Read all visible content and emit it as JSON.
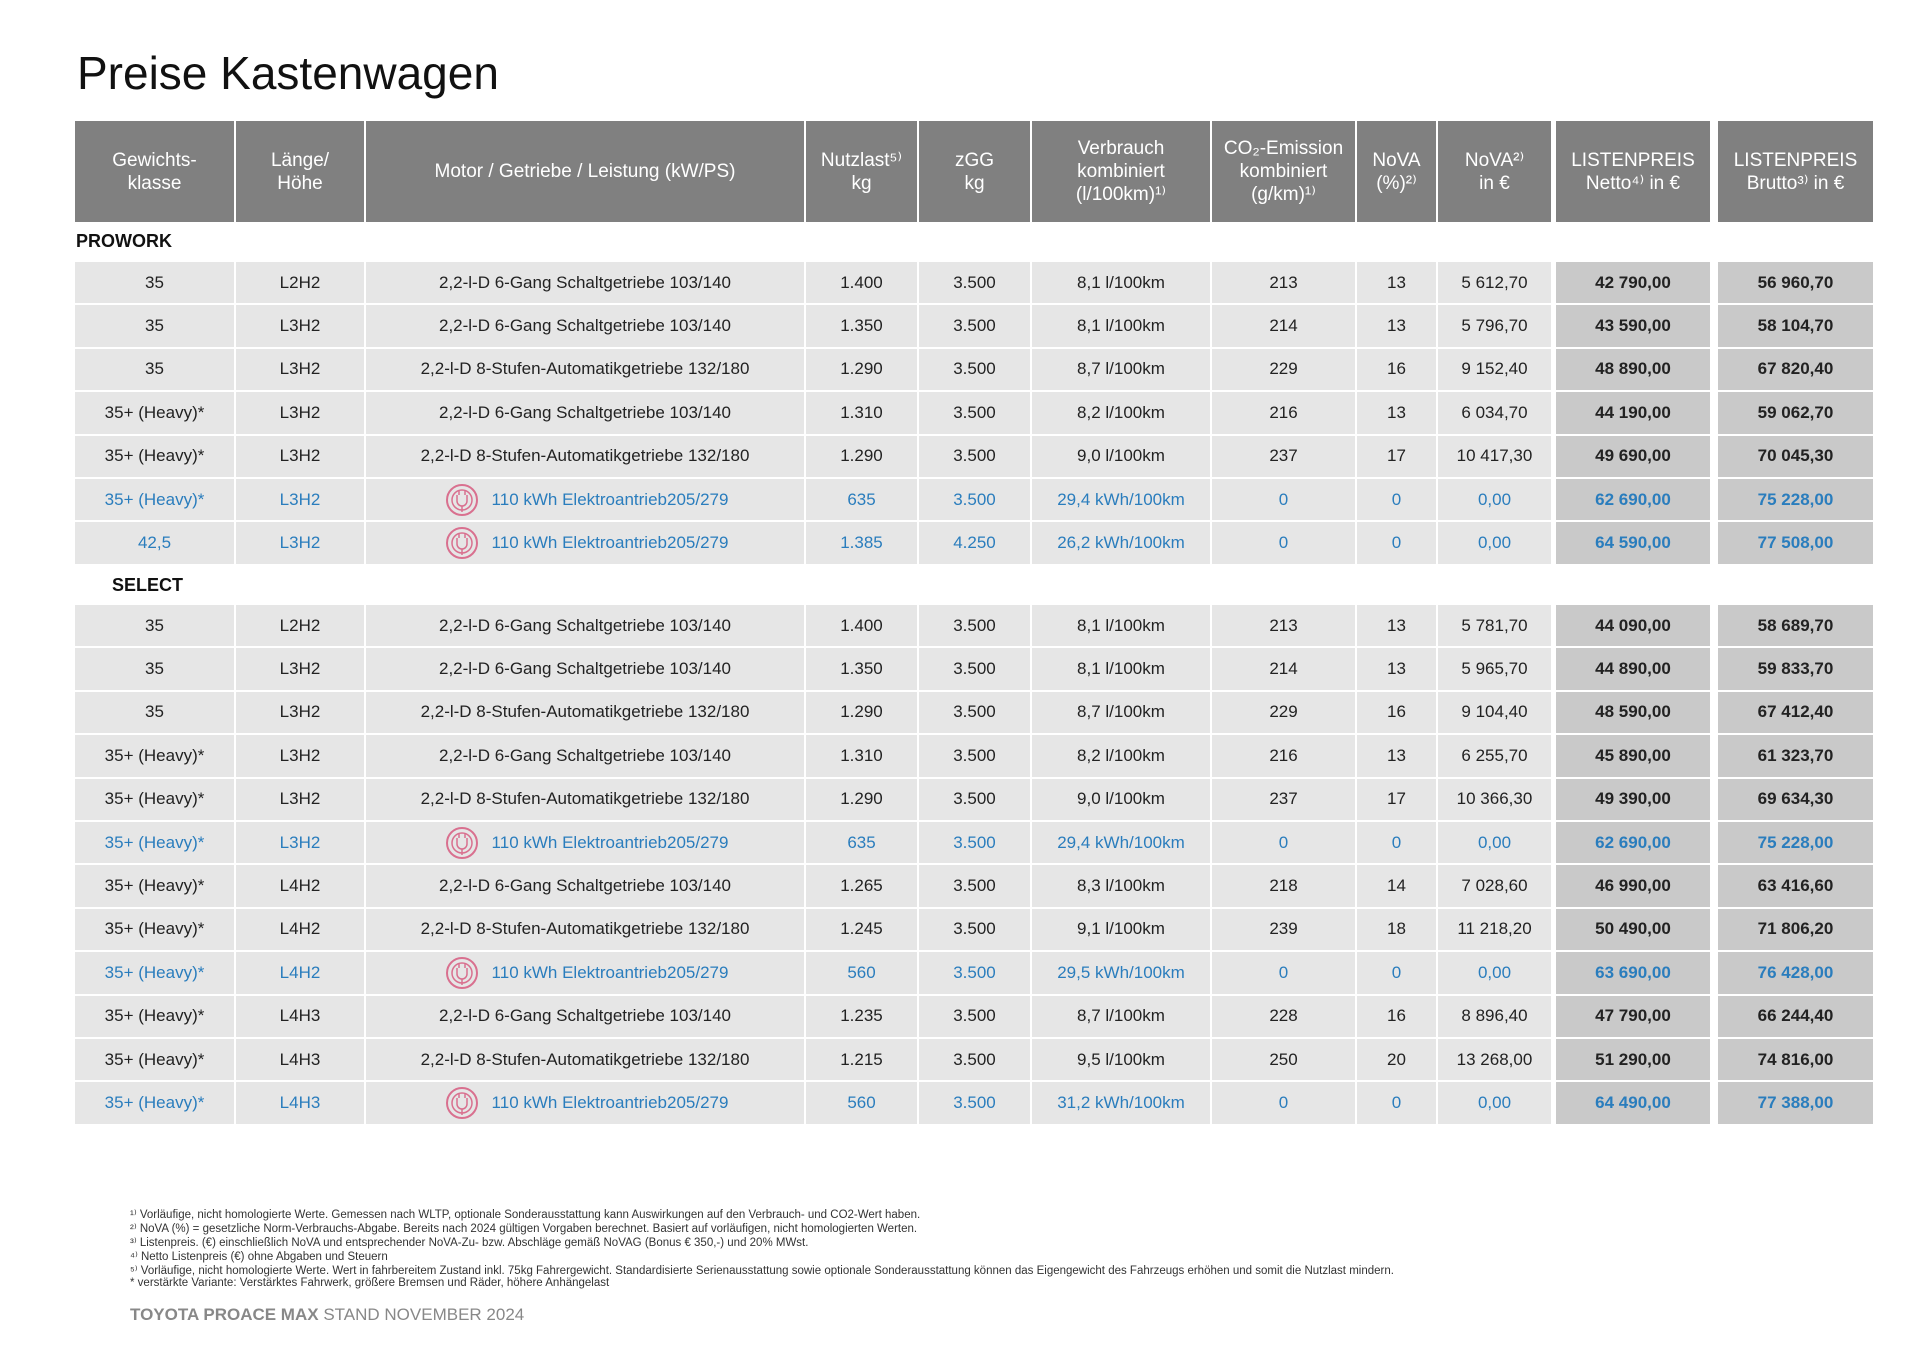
{
  "title": "Preise Kastenwagen",
  "table": {
    "header": [
      [
        "Gewichts-",
        "klasse"
      ],
      [
        "Länge/",
        "Höhe"
      ],
      [
        "Motor / Getriebe /  Leistung (kW/PS)"
      ],
      [
        "Nutzlast⁵⁾",
        "kg"
      ],
      [
        "zGG",
        "kg"
      ],
      [
        "Verbrauch",
        "kombiniert",
        "(l/100km)¹⁾"
      ],
      [
        "CO₂-Emission",
        "kombiniert",
        "(g/km)¹⁾"
      ],
      [
        "NoVA",
        "(%)²⁾"
      ],
      [
        "NoVA²⁾",
        "in €"
      ],
      [
        "LISTENPREIS",
        "Netto⁴⁾ in €"
      ],
      [
        "LISTENPREIS",
        "Brutto³⁾ in €"
      ]
    ],
    "sections": [
      {
        "label": "PROWORK",
        "rows": [
          {
            "cells": [
              "35",
              "L2H2",
              "2,2-l-D 6-Gang Schaltgetriebe 103/140",
              "1.400",
              "3.500",
              "8,1 l/100km",
              "213",
              "13",
              "5 612,70",
              "42 790,00",
              "56 960,70"
            ]
          },
          {
            "cells": [
              "35",
              "L3H2",
              "2,2-l-D 6-Gang Schaltgetriebe 103/140",
              "1.350",
              "3.500",
              "8,1 l/100km",
              "214",
              "13",
              "5 796,70",
              "43 590,00",
              "58 104,70"
            ]
          },
          {
            "cells": [
              "35",
              "L3H2",
              "2,2-l-D 8-Stufen-Automatikgetriebe 132/180",
              "1.290",
              "3.500",
              "8,7 l/100km",
              "229",
              "16",
              "9 152,40",
              "48 890,00",
              "67 820,40"
            ]
          },
          {
            "cells": [
              "35+ (Heavy)*",
              "L3H2",
              "2,2-l-D 6-Gang Schaltgetriebe 103/140",
              "1.310",
              "3.500",
              "8,2 l/100km",
              "216",
              "13",
              "6 034,70",
              "44 190,00",
              "59 062,70"
            ]
          },
          {
            "cells": [
              "35+ (Heavy)*",
              "L3H2",
              "2,2-l-D 8-Stufen-Automatikgetriebe 132/180",
              "1.290",
              "3.500",
              "9,0 l/100km",
              "237",
              "17",
              "10 417,30",
              "49 690,00",
              "70 045,30"
            ]
          },
          {
            "cells": [
              "35+ (Heavy)*",
              "L3H2",
              "110 kWh Elektroantrieb205/279",
              "635",
              "3.500",
              "29,4 kWh/100km",
              "0",
              "0",
              "0,00",
              "62 690,00",
              "75 228,00"
            ],
            "electric": true
          },
          {
            "cells": [
              "42,5",
              "L3H2",
              "110 kWh Elektroantrieb205/279",
              "1.385",
              "4.250",
              "26,2 kWh/100km",
              "0",
              "0",
              "0,00",
              "64 590,00",
              "77 508,00"
            ],
            "electric": true
          }
        ]
      },
      {
        "label": "SELECT",
        "rows": [
          {
            "cells": [
              "35",
              "L2H2",
              "2,2-l-D 6-Gang Schaltgetriebe 103/140",
              "1.400",
              "3.500",
              "8,1 l/100km",
              "213",
              "13",
              "5 781,70",
              "44 090,00",
              "58 689,70"
            ]
          },
          {
            "cells": [
              "35",
              "L3H2",
              "2,2-l-D 6-Gang Schaltgetriebe 103/140",
              "1.350",
              "3.500",
              "8,1 l/100km",
              "214",
              "13",
              "5 965,70",
              "44 890,00",
              "59 833,70"
            ]
          },
          {
            "cells": [
              "35",
              "L3H2",
              "2,2-l-D 8-Stufen-Automatikgetriebe 132/180",
              "1.290",
              "3.500",
              "8,7 l/100km",
              "229",
              "16",
              "9 104,40",
              "48 590,00",
              "67 412,40"
            ]
          },
          {
            "cells": [
              "35+ (Heavy)*",
              "L3H2",
              "2,2-l-D 6-Gang Schaltgetriebe 103/140",
              "1.310",
              "3.500",
              "8,2 l/100km",
              "216",
              "13",
              "6 255,70",
              "45 890,00",
              "61 323,70"
            ]
          },
          {
            "cells": [
              "35+ (Heavy)*",
              "L3H2",
              "2,2-l-D 8-Stufen-Automatikgetriebe 132/180",
              "1.290",
              "3.500",
              "9,0 l/100km",
              "237",
              "17",
              "10 366,30",
              "49 390,00",
              "69 634,30"
            ]
          },
          {
            "cells": [
              "35+ (Heavy)*",
              "L3H2",
              "110 kWh Elektroantrieb205/279",
              "635",
              "3.500",
              "29,4 kWh/100km",
              "0",
              "0",
              "0,00",
              "62 690,00",
              "75 228,00"
            ],
            "electric": true
          },
          {
            "cells": [
              "35+ (Heavy)*",
              "L4H2",
              "2,2-l-D 6-Gang Schaltgetriebe 103/140",
              "1.265",
              "3.500",
              "8,3 l/100km",
              "218",
              "14",
              "7 028,60",
              "46 990,00",
              "63 416,60"
            ]
          },
          {
            "cells": [
              "35+ (Heavy)*",
              "L4H2",
              "2,2-l-D 8-Stufen-Automatikgetriebe 132/180",
              "1.245",
              "3.500",
              "9,1 l/100km",
              "239",
              "18",
              "11 218,20",
              "50 490,00",
              "71 806,20"
            ]
          },
          {
            "cells": [
              "35+ (Heavy)*",
              "L4H2",
              "110 kWh Elektroantrieb205/279",
              "560",
              "3.500",
              "29,5 kWh/100km",
              "0",
              "0",
              "0,00",
              "63 690,00",
              "76 428,00"
            ],
            "electric": true
          },
          {
            "cells": [
              "35+ (Heavy)*",
              "L4H3",
              "2,2-l-D 6-Gang Schaltgetriebe 103/140",
              "1.235",
              "3.500",
              "8,7 l/100km",
              "228",
              "16",
              "8 896,40",
              "47 790,00",
              "66 244,40"
            ]
          },
          {
            "cells": [
              "35+ (Heavy)*",
              "L4H3",
              "2,2-l-D 8-Stufen-Automatikgetriebe 132/180",
              "1.215",
              "3.500",
              "9,5 l/100km",
              "250",
              "20",
              "13 268,00",
              "51 290,00",
              "74 816,00"
            ]
          },
          {
            "cells": [
              "35+ (Heavy)*",
              "L4H3",
              "110 kWh Elektroantrieb205/279",
              "560",
              "3.500",
              "31,2 kWh/100km",
              "0",
              "0",
              "0,00",
              "64 490,00",
              "77 388,00"
            ],
            "electric": true
          }
        ]
      }
    ]
  },
  "footnotes": [
    "¹⁾ Vorläufige, nicht homologierte Werte. Gemessen nach WLTP, optionale Sonderausstattung kann Auswirkungen auf den Verbrauch- und CO2-Wert haben.",
    "²⁾ NoVA (%) = gesetzliche Norm-Verbrauchs-Abgabe. Bereits nach 2024 gültigen Vorgaben berechnet. Basiert auf vorläufigen, nicht homologierten Werten.",
    "³⁾ Listenpreis. (€) einschließlich NoVA und entsprechender NoVA-Zu- bzw. Abschläge gemäß NoVAG (Bonus € 350,-) und 20% MWst.",
    "⁴⁾ Netto Listenpreis (€) ohne Abgaben und Steuern",
    "⁵⁾ Vorläufige, nicht homologierte Werte. Wert in fahrbereitem Zustand inkl. 75kg Fahrergewicht. Standardisierte Serienausstattung sowie optionale Sonderausstattung können das Eigengewicht des Fahrzeugs erhöhen und somit die Nutzlast mindern.",
    "* verstärkte Variante: Verstärktes Fahrwerk, größere Bremsen und Räder, höhere Anhängelast"
  ],
  "footer": {
    "brand": "TOYOTA PROACE MAX",
    "date": "STAND NOVEMBER 2024"
  }
}
